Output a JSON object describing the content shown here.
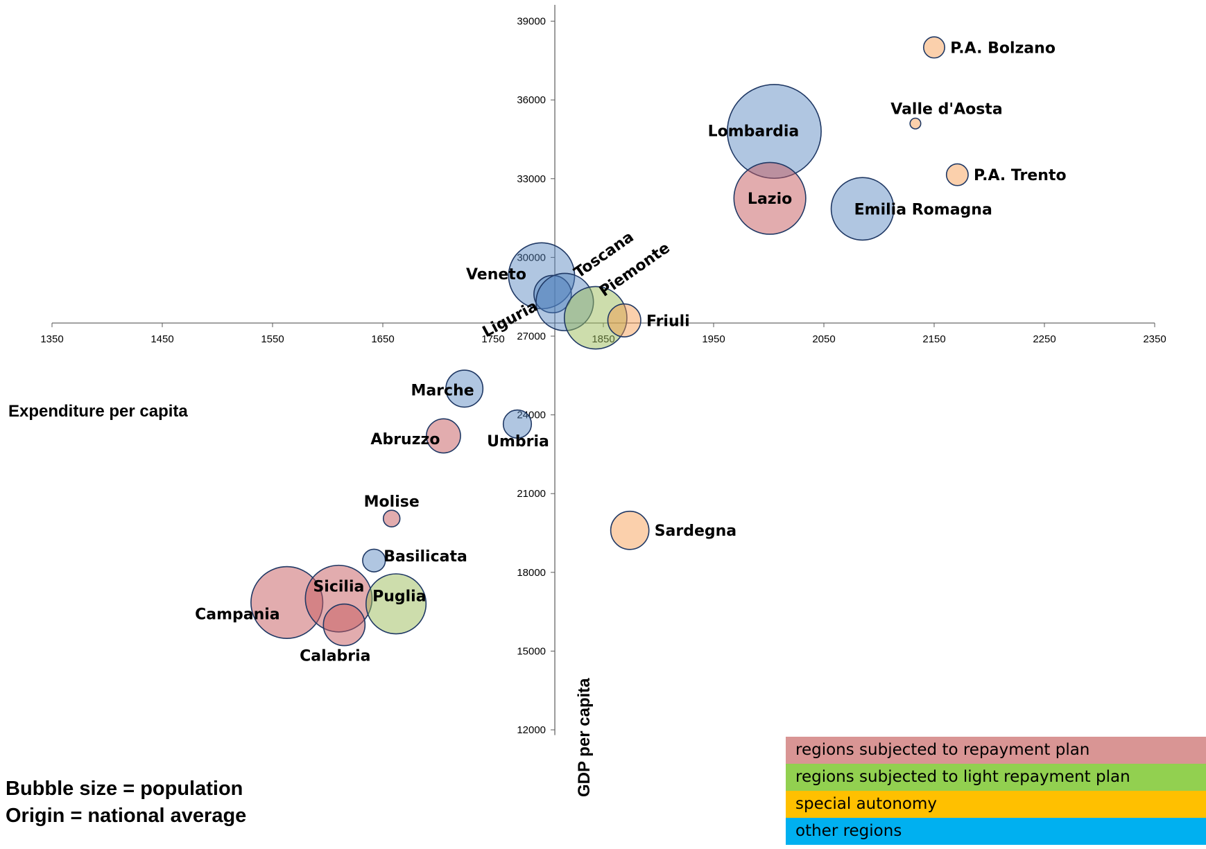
{
  "chart_data": {
    "type": "scatter",
    "subtype": "bubble",
    "x_axis": {
      "label": "Expenditure per capita",
      "ticks": [
        1350,
        1450,
        1550,
        1650,
        1750,
        1850,
        1950,
        2050,
        2150,
        2250,
        2350
      ],
      "range": [
        1350,
        2350
      ],
      "crosses_y_at": 27500
    },
    "y_axis": {
      "label": "GDP per capita",
      "ticks": [
        12000,
        15000,
        18000,
        21000,
        24000,
        27000,
        30000,
        33000,
        36000,
        39000
      ],
      "range": [
        11500,
        40000
      ],
      "crosses_x_at": 1806
    },
    "grid": false,
    "notes": [
      "Bubble size = population",
      "Origin = national average"
    ],
    "legend": [
      {
        "label": "regions subjected to repayment plan",
        "color": "#D99594",
        "group": "repayment"
      },
      {
        "label": "regions subjected to light repayment plan",
        "color": "#92D050",
        "group": "light"
      },
      {
        "label": "special autonomy",
        "color": "#FFC000",
        "group": "special"
      },
      {
        "label": "other regions",
        "color": "#00B0F0",
        "group": "other"
      }
    ],
    "bubble_fill": {
      "repayment": "rgba(198,89,93,0.5)",
      "light": "rgba(155,187,89,0.5)",
      "special": "rgba(247,150,70,0.45)",
      "other": "rgba(79,129,189,0.45)"
    },
    "bubble_stroke": "#1F3864",
    "points": [
      {
        "name": "P.A. Bolzano",
        "x": 2150,
        "y": 38000,
        "population": 0.5,
        "group": "special",
        "label_pos": "right"
      },
      {
        "name": "Valle d'Aosta",
        "x": 2133,
        "y": 35100,
        "population": 0.13,
        "group": "special",
        "label_pos": "above-right"
      },
      {
        "name": "Lombardia",
        "x": 2005,
        "y": 34800,
        "population": 9.9,
        "group": "other",
        "label_pos": "center"
      },
      {
        "name": "P.A. Trento",
        "x": 2171,
        "y": 33150,
        "population": 0.53,
        "group": "special",
        "label_pos": "right"
      },
      {
        "name": "Lazio",
        "x": 2001,
        "y": 32250,
        "population": 5.8,
        "group": "repayment",
        "label_pos": "center"
      },
      {
        "name": "Emilia Romagna",
        "x": 2085,
        "y": 31850,
        "population": 4.4,
        "group": "other",
        "label_pos": "right"
      },
      {
        "name": "Veneto",
        "x": 1794,
        "y": 29300,
        "population": 4.9,
        "group": "other",
        "label_pos": "left"
      },
      {
        "name": "Liguria",
        "x": 1804,
        "y": 28600,
        "population": 1.57,
        "group": "other",
        "label_pos": "rotated-left"
      },
      {
        "name": "Toscana",
        "x": 1815,
        "y": 28300,
        "population": 3.7,
        "group": "other",
        "label_pos": "rotated-above"
      },
      {
        "name": "Piemonte",
        "x": 1843,
        "y": 27700,
        "population": 4.4,
        "group": "light",
        "label_pos": "rotated-above"
      },
      {
        "name": "Friuli",
        "x": 1869,
        "y": 27600,
        "population": 1.22,
        "group": "special",
        "label_pos": "right"
      },
      {
        "name": "Marche",
        "x": 1724,
        "y": 25000,
        "population": 1.54,
        "group": "other",
        "label_pos": "left"
      },
      {
        "name": "Umbria",
        "x": 1772,
        "y": 23650,
        "population": 0.89,
        "group": "other",
        "label_pos": "below"
      },
      {
        "name": "Abruzzo",
        "x": 1705,
        "y": 23200,
        "population": 1.31,
        "group": "repayment",
        "label_pos": "left"
      },
      {
        "name": "Molise",
        "x": 1658,
        "y": 20050,
        "population": 0.31,
        "group": "repayment",
        "label_pos": "above"
      },
      {
        "name": "Sardegna",
        "x": 1874,
        "y": 19600,
        "population": 1.64,
        "group": "special",
        "label_pos": "right"
      },
      {
        "name": "Basilicata",
        "x": 1642,
        "y": 18450,
        "population": 0.58,
        "group": "other",
        "label_pos": "right"
      },
      {
        "name": "Campania",
        "x": 1563,
        "y": 16850,
        "population": 5.8,
        "group": "repayment",
        "label_pos": "left"
      },
      {
        "name": "Sicilia",
        "x": 1610,
        "y": 17000,
        "population": 5.0,
        "group": "repayment",
        "label_pos": "center"
      },
      {
        "name": "Calabria",
        "x": 1615,
        "y": 16000,
        "population": 1.95,
        "group": "repayment",
        "label_pos": "below"
      },
      {
        "name": "Puglia",
        "x": 1662,
        "y": 16800,
        "population": 4.05,
        "group": "light",
        "label_pos": "right"
      }
    ]
  }
}
